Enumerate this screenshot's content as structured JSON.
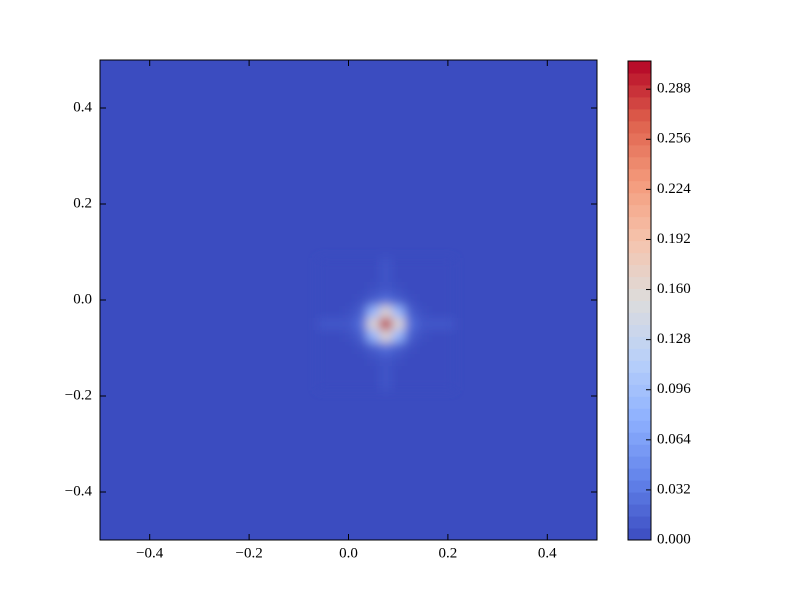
{
  "chart_data": {
    "type": "contourf",
    "colormap": "coolwarm",
    "x": [
      -0.05,
      -0.025,
      0,
      0.025,
      0.05,
      0.075,
      0.1,
      0.125,
      0.15,
      0.175,
      0.2
    ],
    "y": [
      0.075,
      0.05,
      0.025,
      0,
      -0.025,
      -0.05,
      -0.075,
      -0.1,
      -0.125,
      -0.15,
      -0.175
    ],
    "z": [
      [
        0,
        0,
        0,
        0,
        0,
        0.006,
        0,
        0,
        0,
        0,
        0
      ],
      [
        0,
        0,
        0,
        0,
        0,
        0.006,
        0,
        0,
        0,
        0,
        0
      ],
      [
        0,
        0,
        0,
        0,
        0.002,
        0.006,
        0.002,
        0,
        0,
        0,
        0
      ],
      [
        0,
        0,
        0,
        0.002,
        0.012,
        0.024,
        0.012,
        0.002,
        0,
        0,
        0
      ],
      [
        0,
        0,
        0.002,
        0.012,
        0.085,
        0.16,
        0.085,
        0.012,
        0.002,
        0,
        0
      ],
      [
        0.008,
        0.008,
        0.008,
        0.024,
        0.16,
        0.31,
        0.16,
        0.024,
        0.008,
        0.008,
        0.008
      ],
      [
        0,
        0,
        0.002,
        0.012,
        0.085,
        0.16,
        0.085,
        0.012,
        0.002,
        0,
        0
      ],
      [
        0,
        0,
        0,
        0.002,
        0.012,
        0.024,
        0.012,
        0.002,
        0,
        0,
        0
      ],
      [
        0,
        0,
        0,
        0,
        0.002,
        0.006,
        0.002,
        0,
        0,
        0,
        0
      ],
      [
        0,
        0,
        0,
        0,
        0,
        0.006,
        0,
        0,
        0,
        0,
        0
      ],
      [
        0,
        0,
        0,
        0,
        0,
        0.006,
        0,
        0,
        0,
        0,
        0
      ]
    ],
    "xlim": [
      -0.5,
      0.5
    ],
    "ylim": [
      -0.5,
      0.5
    ],
    "xticks": [
      {
        "value": -0.4,
        "label": "−0.4"
      },
      {
        "value": -0.2,
        "label": "−0.2"
      },
      {
        "value": 0,
        "label": "0.0"
      },
      0.2,
      0.4
    ],
    "yticks": [
      {
        "value": -0.4,
        "label": "−0.4"
      },
      {
        "value": -0.2,
        "label": "−0.2"
      },
      {
        "value": 0,
        "label": "0.0"
      },
      0.2,
      0.4
    ],
    "zlim": [
      0,
      0.306
    ],
    "zticks": [
      {
        "value": 0,
        "label": "0.000"
      },
      {
        "value": 0.032,
        "label": "0.032"
      },
      {
        "value": 0.064,
        "label": "0.064"
      },
      {
        "value": 0.096,
        "label": "0.096"
      },
      {
        "value": 0.128,
        "label": "0.128"
      },
      {
        "value": 0.16,
        "label": "0.160"
      },
      {
        "value": 0.192,
        "label": "0.192"
      },
      {
        "value": 0.224,
        "label": "0.224"
      },
      {
        "value": 0.256,
        "label": "0.256"
      },
      {
        "value": 0.288,
        "label": "0.288"
      }
    ]
  }
}
